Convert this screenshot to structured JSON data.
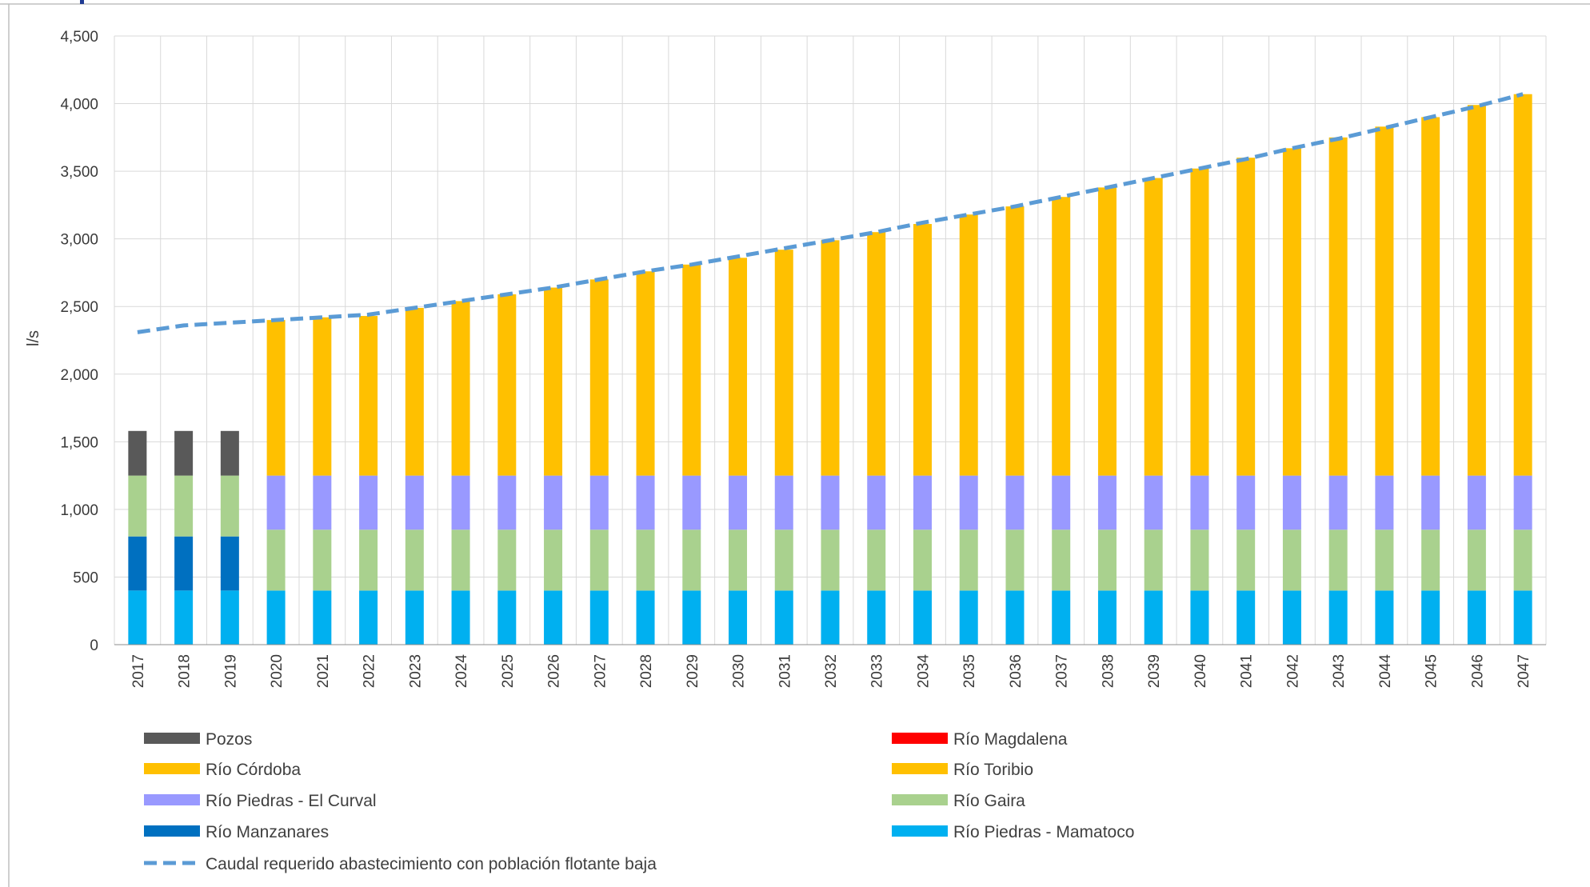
{
  "chart_data": {
    "type": "bar",
    "stacked": true,
    "title": "",
    "xlabel": "",
    "ylabel": "l/s",
    "ylim": [
      0,
      4500
    ],
    "yticks": [
      0,
      500,
      1000,
      1500,
      2000,
      2500,
      3000,
      3500,
      4000,
      4500
    ],
    "ytick_labels": [
      "0",
      "500",
      "1,000",
      "1,500",
      "2,000",
      "2,500",
      "3,000",
      "3,500",
      "4,000",
      "4,500"
    ],
    "grid": true,
    "legend_position": "bottom",
    "categories": [
      "2017",
      "2018",
      "2019",
      "2020",
      "2021",
      "2022",
      "2023",
      "2024",
      "2025",
      "2026",
      "2027",
      "2028",
      "2029",
      "2030",
      "2031",
      "2032",
      "2033",
      "2034",
      "2035",
      "2036",
      "2037",
      "2038",
      "2039",
      "2040",
      "2041",
      "2042",
      "2043",
      "2044",
      "2045",
      "2046",
      "2047"
    ],
    "series": [
      {
        "name": "Río Piedras - Mamatoco",
        "color": "#00b0f0",
        "values": [
          400,
          400,
          400,
          400,
          400,
          400,
          400,
          400,
          400,
          400,
          400,
          400,
          400,
          400,
          400,
          400,
          400,
          400,
          400,
          400,
          400,
          400,
          400,
          400,
          400,
          400,
          400,
          400,
          400,
          400,
          400
        ]
      },
      {
        "name": "Río Manzanares",
        "color": "#0070c0",
        "values": [
          400,
          400,
          400,
          0,
          0,
          0,
          0,
          0,
          0,
          0,
          0,
          0,
          0,
          0,
          0,
          0,
          0,
          0,
          0,
          0,
          0,
          0,
          0,
          0,
          0,
          0,
          0,
          0,
          0,
          0,
          0
        ]
      },
      {
        "name": "Río Gaira",
        "color": "#a9d18e",
        "values": [
          450,
          450,
          450,
          450,
          450,
          450,
          450,
          450,
          450,
          450,
          450,
          450,
          450,
          450,
          450,
          450,
          450,
          450,
          450,
          450,
          450,
          450,
          450,
          450,
          450,
          450,
          450,
          450,
          450,
          450,
          450
        ]
      },
      {
        "name": "Río Piedras - El Curval",
        "color": "#9999ff",
        "values": [
          0,
          0,
          0,
          400,
          400,
          400,
          400,
          400,
          400,
          400,
          400,
          400,
          400,
          400,
          400,
          400,
          400,
          400,
          400,
          400,
          400,
          400,
          400,
          400,
          400,
          400,
          400,
          400,
          400,
          400,
          400
        ]
      },
      {
        "name": "Río Toribio",
        "color": "#ffc000",
        "values": [
          0,
          0,
          0,
          0,
          0,
          0,
          0,
          0,
          0,
          0,
          0,
          0,
          0,
          0,
          0,
          0,
          0,
          0,
          0,
          0,
          0,
          0,
          0,
          0,
          0,
          0,
          0,
          0,
          0,
          0,
          0
        ]
      },
      {
        "name": "Río Córdoba",
        "color": "#ffc000",
        "values": [
          0,
          0,
          0,
          1150,
          1170,
          1180,
          1240,
          1290,
          1340,
          1390,
          1450,
          1510,
          1560,
          1610,
          1670,
          1740,
          1800,
          1860,
          1930,
          1990,
          2060,
          2130,
          2200,
          2270,
          2350,
          2420,
          2500,
          2580,
          2650,
          2740,
          2820
        ]
      },
      {
        "name": "Río Magdalena",
        "color": "#ff0000",
        "values": [
          0,
          0,
          0,
          0,
          0,
          0,
          0,
          0,
          0,
          0,
          0,
          0,
          0,
          0,
          0,
          0,
          0,
          0,
          0,
          0,
          0,
          0,
          0,
          0,
          0,
          0,
          0,
          0,
          0,
          0,
          0
        ]
      },
      {
        "name": "Pozos",
        "color": "#595959",
        "values": [
          330,
          330,
          330,
          0,
          0,
          0,
          0,
          0,
          0,
          0,
          0,
          0,
          0,
          0,
          0,
          0,
          0,
          0,
          0,
          0,
          0,
          0,
          0,
          0,
          0,
          0,
          0,
          0,
          0,
          0,
          0
        ]
      }
    ],
    "line_series": {
      "name": "Caudal requerido abastecimiento con población flotante baja",
      "color": "#5b9bd5",
      "style": "dashed",
      "values": [
        2310,
        2360,
        2380,
        2400,
        2420,
        2440,
        2490,
        2540,
        2590,
        2640,
        2700,
        2760,
        2810,
        2870,
        2930,
        2990,
        3050,
        3120,
        3180,
        3240,
        3310,
        3380,
        3450,
        3520,
        3590,
        3670,
        3740,
        3820,
        3900,
        3980,
        4070
      ]
    },
    "legend": [
      {
        "name": "Pozos",
        "color": "#595959",
        "kind": "bar"
      },
      {
        "name": "Río Magdalena",
        "color": "#ff0000",
        "kind": "bar"
      },
      {
        "name": "Río Córdoba",
        "color": "#ffc000",
        "kind": "bar"
      },
      {
        "name": "Río Toribio",
        "color": "#ffc000",
        "kind": "bar"
      },
      {
        "name": "Río Piedras - El Curval",
        "color": "#9999ff",
        "kind": "bar"
      },
      {
        "name": "Río Gaira",
        "color": "#a9d18e",
        "kind": "bar"
      },
      {
        "name": "Río Manzanares",
        "color": "#0070c0",
        "kind": "bar"
      },
      {
        "name": "Río Piedras - Mamatoco",
        "color": "#00b0f0",
        "kind": "bar"
      },
      {
        "name": "Caudal requerido abastecimiento con población flotante baja",
        "color": "#5b9bd5",
        "kind": "dashed-line"
      }
    ]
  }
}
